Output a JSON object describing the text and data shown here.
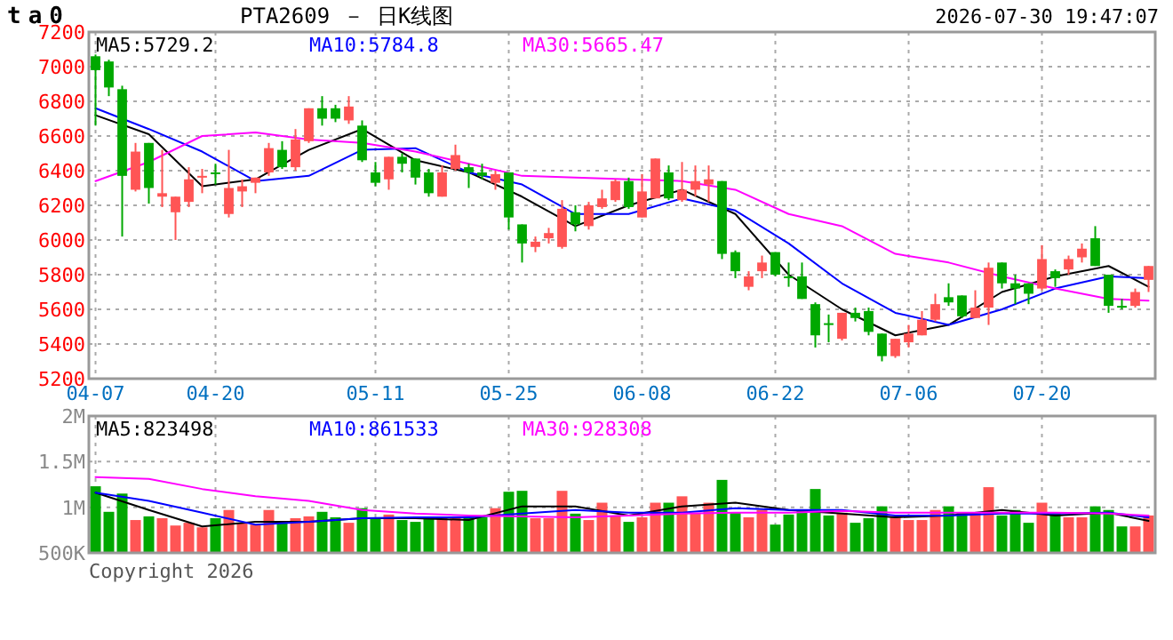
{
  "chart_data": [
    {
      "type": "candlestick",
      "title": "PTA2609 － 日K线图",
      "annotations": [
        "ta0",
        "2026-07-30 19:47:07"
      ],
      "categories": [
        "04-07",
        null,
        null,
        null,
        null,
        null,
        null,
        null,
        null,
        "04-20",
        null,
        null,
        null,
        null,
        null,
        null,
        null,
        null,
        null,
        null,
        null,
        "05-11",
        null,
        null,
        null,
        null,
        null,
        null,
        null,
        null,
        null,
        "05-25",
        null,
        null,
        null,
        null,
        null,
        null,
        null,
        null,
        null,
        "06-08",
        null,
        null,
        null,
        null,
        null,
        null,
        null,
        null,
        null,
        "06-22",
        null,
        null,
        null,
        null,
        null,
        null,
        null,
        null,
        null,
        "07-06",
        null,
        null,
        null,
        null,
        null,
        null,
        null,
        null,
        null,
        "07-20",
        null,
        null,
        null,
        null,
        null,
        null,
        null,
        null
      ],
      "ohlc": [
        [
          7060,
          7070,
          6660,
          6980
        ],
        [
          7030,
          7040,
          6830,
          6880
        ],
        [
          6870,
          6890,
          6020,
          6370
        ],
        [
          6290,
          6560,
          6280,
          6510
        ],
        [
          6560,
          6560,
          6210,
          6300
        ],
        [
          6250,
          6520,
          6190,
          6270
        ],
        [
          6160,
          6250,
          6000,
          6250
        ],
        [
          6220,
          6420,
          6190,
          6350
        ],
        [
          6360,
          6410,
          6270,
          6370
        ],
        [
          6390,
          6440,
          6320,
          6380
        ],
        [
          6150,
          6520,
          6130,
          6300
        ],
        [
          6280,
          6350,
          6190,
          6310
        ],
        [
          6330,
          6360,
          6270,
          6360
        ],
        [
          6390,
          6560,
          6370,
          6530
        ],
        [
          6520,
          6570,
          6410,
          6420
        ],
        [
          6420,
          6640,
          6400,
          6580
        ],
        [
          6570,
          6760,
          6560,
          6760
        ],
        [
          6760,
          6830,
          6660,
          6700
        ],
        [
          6760,
          6780,
          6680,
          6700
        ],
        [
          6690,
          6830,
          6670,
          6770
        ],
        [
          6660,
          6690,
          6450,
          6460
        ],
        [
          6390,
          6450,
          6310,
          6330
        ],
        [
          6350,
          6480,
          6290,
          6480
        ],
        [
          6480,
          6500,
          6390,
          6440
        ],
        [
          6470,
          6470,
          6320,
          6360
        ],
        [
          6390,
          6410,
          6250,
          6270
        ],
        [
          6250,
          6430,
          6250,
          6390
        ],
        [
          6410,
          6550,
          6400,
          6490
        ],
        [
          6420,
          6440,
          6300,
          6390
        ],
        [
          6390,
          6440,
          6350,
          6370
        ],
        [
          6330,
          6400,
          6290,
          6380
        ],
        [
          6390,
          6390,
          6060,
          6130
        ],
        [
          6090,
          6090,
          5870,
          5980
        ],
        [
          5960,
          6020,
          5930,
          5990
        ],
        [
          6010,
          6070,
          5980,
          6040
        ],
        [
          5960,
          6230,
          5950,
          6180
        ],
        [
          6160,
          6200,
          6050,
          6090
        ],
        [
          6080,
          6220,
          6060,
          6200
        ],
        [
          6190,
          6290,
          6180,
          6240
        ],
        [
          6230,
          6350,
          6220,
          6340
        ],
        [
          6340,
          6360,
          6180,
          6190
        ],
        [
          6130,
          6380,
          6130,
          6280
        ],
        [
          6240,
          6470,
          6240,
          6470
        ],
        [
          6390,
          6430,
          6230,
          6240
        ],
        [
          6230,
          6450,
          6220,
          6290
        ],
        [
          6290,
          6430,
          6250,
          6340
        ],
        [
          6320,
          6430,
          6220,
          6350
        ],
        [
          6340,
          6340,
          5890,
          5920
        ],
        [
          5930,
          5940,
          5780,
          5820
        ],
        [
          5730,
          5820,
          5710,
          5790
        ],
        [
          5820,
          5910,
          5780,
          5870
        ],
        [
          5930,
          5930,
          5790,
          5800
        ],
        [
          5790,
          5870,
          5730,
          5780
        ],
        [
          5790,
          5870,
          5660,
          5660
        ],
        [
          5630,
          5640,
          5380,
          5450
        ],
        [
          5520,
          5570,
          5410,
          5510
        ],
        [
          5430,
          5580,
          5420,
          5580
        ],
        [
          5580,
          5610,
          5530,
          5550
        ],
        [
          5590,
          5610,
          5450,
          5470
        ],
        [
          5460,
          5460,
          5300,
          5330
        ],
        [
          5330,
          5430,
          5320,
          5430
        ],
        [
          5410,
          5510,
          5380,
          5460
        ],
        [
          5450,
          5590,
          5450,
          5540
        ],
        [
          5540,
          5690,
          5530,
          5630
        ],
        [
          5670,
          5750,
          5620,
          5640
        ],
        [
          5680,
          5680,
          5550,
          5560
        ],
        [
          5550,
          5710,
          5550,
          5610
        ],
        [
          5610,
          5870,
          5510,
          5840
        ],
        [
          5870,
          5870,
          5720,
          5750
        ],
        [
          5750,
          5800,
          5630,
          5720
        ],
        [
          5750,
          5750,
          5630,
          5690
        ],
        [
          5720,
          5970,
          5710,
          5890
        ],
        [
          5820,
          5830,
          5730,
          5780
        ],
        [
          5830,
          5910,
          5800,
          5890
        ],
        [
          5900,
          5980,
          5870,
          5950
        ],
        [
          6010,
          6080,
          5850,
          5850
        ],
        [
          5800,
          5800,
          5580,
          5620
        ],
        [
          5620,
          5660,
          5600,
          5610
        ],
        [
          5620,
          5720,
          5610,
          5700
        ],
        [
          5770,
          5850,
          5700,
          5850
        ]
      ],
      "colors": [
        "#00a800",
        "#00a800",
        "#00a800",
        "#ff5555",
        "#00a800",
        "#ff5555",
        "#ff5555",
        "#ff5555",
        "#ff5555",
        "#00a800",
        "#ff5555",
        "#ff5555",
        "#ff5555",
        "#ff5555",
        "#00a800",
        "#ff5555",
        "#ff5555",
        "#00a800",
        "#00a800",
        "#ff5555",
        "#00a800",
        "#00a800",
        "#ff5555",
        "#00a800",
        "#00a800",
        "#00a800",
        "#ff5555",
        "#ff5555",
        "#00a800",
        "#00a800",
        "#ff5555",
        "#00a800",
        "#00a800",
        "#ff5555",
        "#ff5555",
        "#ff5555",
        "#00a800",
        "#ff5555",
        "#ff5555",
        "#ff5555",
        "#00a800",
        "#ff5555",
        "#ff5555",
        "#00a800",
        "#ff5555",
        "#ff5555",
        "#ff5555",
        "#00a800",
        "#00a800",
        "#ff5555",
        "#ff5555",
        "#00a800",
        "#00a800",
        "#00a800",
        "#00a800",
        "#00a800",
        "#ff5555",
        "#00a800",
        "#00a800",
        "#00a800",
        "#ff5555",
        "#ff5555",
        "#ff5555",
        "#ff5555",
        "#00a800",
        "#00a800",
        "#ff5555",
        "#ff5555",
        "#00a800",
        "#00a800",
        "#00a800",
        "#ff5555",
        "#00a800",
        "#ff5555",
        "#ff5555",
        "#00a800",
        "#00a800",
        "#00a800",
        "#ff5555",
        "#ff5555"
      ],
      "series": [
        {
          "name": "MA5:5729.2",
          "color": "#000000",
          "type": "line",
          "values": [
            6720,
            null,
            null,
            null,
            6610,
            null,
            null,
            null,
            6310,
            null,
            null,
            null,
            6350,
            null,
            null,
            null,
            6520,
            null,
            null,
            null,
            6640,
            null,
            null,
            null,
            6460,
            null,
            null,
            null,
            6390,
            null,
            null,
            null,
            6250,
            null,
            null,
            null,
            6080,
            null,
            null,
            null,
            6200,
            null,
            null,
            null,
            6290,
            null,
            null,
            null,
            6150,
            null,
            null,
            null,
            5800,
            null,
            null,
            null,
            5600,
            null,
            null,
            null,
            5450,
            null,
            null,
            null,
            5510,
            null,
            null,
            null,
            5700,
            null,
            null,
            null,
            5790,
            null,
            null,
            null,
            5850,
            null,
            null,
            5730
          ]
        },
        {
          "name": "MA10:5784.8",
          "color": "#0000ff",
          "type": "line",
          "values": [
            6760,
            null,
            null,
            null,
            6640,
            null,
            null,
            null,
            6510,
            null,
            null,
            null,
            6340,
            null,
            null,
            null,
            6370,
            null,
            null,
            null,
            6520,
            null,
            null,
            null,
            6530,
            null,
            null,
            null,
            6390,
            null,
            null,
            null,
            6320,
            null,
            null,
            null,
            6150,
            null,
            null,
            null,
            6150,
            null,
            null,
            null,
            6240,
            null,
            null,
            null,
            6170,
            null,
            null,
            null,
            5980,
            null,
            null,
            null,
            5750,
            null,
            null,
            null,
            5580,
            null,
            null,
            null,
            5510,
            null,
            null,
            null,
            5600,
            null,
            null,
            null,
            5720,
            null,
            null,
            null,
            5790,
            null,
            null,
            5780
          ]
        },
        {
          "name": "MA30:5665.47",
          "color": "#ff00ff",
          "type": "line",
          "values": [
            6340,
            null,
            null,
            null,
            6450,
            null,
            null,
            null,
            6600,
            null,
            null,
            null,
            6620,
            null,
            null,
            null,
            6580,
            null,
            null,
            null,
            6560,
            null,
            null,
            null,
            6510,
            null,
            null,
            null,
            6440,
            null,
            null,
            null,
            6370,
            null,
            null,
            null,
            6360,
            null,
            null,
            null,
            6350,
            null,
            null,
            null,
            6340,
            null,
            null,
            null,
            6290,
            null,
            null,
            null,
            6150,
            null,
            null,
            null,
            6080,
            null,
            null,
            null,
            5920,
            null,
            null,
            null,
            5870,
            null,
            null,
            null,
            5790,
            null,
            null,
            null,
            5720,
            null,
            null,
            null,
            5660,
            null,
            null,
            5650
          ]
        }
      ],
      "ylim": [
        5200,
        7200
      ],
      "yticks": [
        5200,
        5400,
        5600,
        5800,
        6000,
        6200,
        6400,
        6600,
        6800,
        7000,
        7200
      ],
      "grid": true,
      "legend": "top left"
    },
    {
      "type": "bar",
      "annotations": [
        "Copyright 2026"
      ],
      "categories": [
        null,
        null,
        null,
        null,
        null,
        null,
        null,
        null,
        null,
        null,
        null,
        null,
        null,
        null,
        null,
        null,
        null,
        null,
        null,
        null,
        null,
        null,
        null,
        null,
        null,
        null,
        null,
        null,
        null,
        null,
        null,
        null,
        null,
        null,
        null,
        null,
        null,
        null,
        null,
        null,
        null,
        null,
        null,
        null,
        null,
        null,
        null,
        null,
        null,
        null,
        null,
        null,
        null,
        null,
        null,
        null,
        null,
        null,
        null,
        null,
        null,
        null,
        null,
        null,
        null,
        null,
        null,
        null,
        null,
        null,
        null,
        null,
        null,
        null,
        null,
        null,
        null,
        null,
        null,
        null
      ],
      "values": [
        1230000,
        950000,
        1150000,
        860000,
        900000,
        880000,
        800000,
        830000,
        780000,
        880000,
        970000,
        830000,
        810000,
        970000,
        830000,
        880000,
        900000,
        950000,
        890000,
        830000,
        990000,
        880000,
        920000,
        860000,
        840000,
        890000,
        890000,
        890000,
        890000,
        890000,
        990000,
        1170000,
        1180000,
        880000,
        880000,
        1180000,
        930000,
        860000,
        1050000,
        910000,
        840000,
        890000,
        1050000,
        1050000,
        1120000,
        940000,
        1050000,
        1300000,
        940000,
        890000,
        970000,
        810000,
        920000,
        970000,
        1200000,
        910000,
        940000,
        830000,
        880000,
        1010000,
        890000,
        860000,
        860000,
        970000,
        1010000,
        940000,
        940000,
        1220000,
        910000,
        970000,
        830000,
        1050000,
        940000,
        890000,
        890000,
        1010000,
        970000,
        790000,
        790000,
        910000
      ],
      "colors": [
        "#00a800",
        "#00a800",
        "#00a800",
        "#ff5555",
        "#00a800",
        "#ff5555",
        "#ff5555",
        "#ff5555",
        "#ff5555",
        "#00a800",
        "#ff5555",
        "#ff5555",
        "#ff5555",
        "#ff5555",
        "#00a800",
        "#ff5555",
        "#ff5555",
        "#00a800",
        "#00a800",
        "#ff5555",
        "#00a800",
        "#00a800",
        "#ff5555",
        "#00a800",
        "#00a800",
        "#00a800",
        "#ff5555",
        "#ff5555",
        "#00a800",
        "#00a800",
        "#ff5555",
        "#00a800",
        "#00a800",
        "#ff5555",
        "#ff5555",
        "#ff5555",
        "#00a800",
        "#ff5555",
        "#ff5555",
        "#ff5555",
        "#00a800",
        "#ff5555",
        "#ff5555",
        "#00a800",
        "#ff5555",
        "#ff5555",
        "#ff5555",
        "#00a800",
        "#00a800",
        "#ff5555",
        "#ff5555",
        "#00a800",
        "#00a800",
        "#00a800",
        "#00a800",
        "#00a800",
        "#ff5555",
        "#00a800",
        "#00a800",
        "#00a800",
        "#ff5555",
        "#ff5555",
        "#ff5555",
        "#ff5555",
        "#00a800",
        "#00a800",
        "#ff5555",
        "#ff5555",
        "#00a800",
        "#00a800",
        "#00a800",
        "#ff5555",
        "#00a800",
        "#ff5555",
        "#ff5555",
        "#00a800",
        "#00a800",
        "#00a800",
        "#ff5555",
        "#ff5555"
      ],
      "series": [
        {
          "name": "MA5:823498",
          "color": "#000000",
          "type": "line",
          "values": [
            1160000,
            null,
            null,
            null,
            970000,
            null,
            null,
            null,
            790000,
            null,
            null,
            null,
            840000,
            null,
            null,
            null,
            840000,
            null,
            null,
            null,
            880000,
            null,
            null,
            null,
            880000,
            null,
            null,
            null,
            860000,
            null,
            null,
            null,
            1010000,
            null,
            null,
            null,
            1010000,
            null,
            null,
            null,
            910000,
            null,
            null,
            null,
            1010000,
            null,
            null,
            null,
            1050000,
            null,
            null,
            null,
            970000,
            null,
            null,
            null,
            930000,
            null,
            null,
            null,
            890000,
            null,
            null,
            null,
            910000,
            null,
            null,
            null,
            970000,
            null,
            null,
            null,
            910000,
            null,
            null,
            null,
            940000,
            null,
            null,
            850000
          ]
        },
        {
          "name": "MA10:861533",
          "color": "#0000ff",
          "type": "line",
          "values": [
            1160000,
            null,
            null,
            null,
            1070000,
            null,
            null,
            null,
            940000,
            null,
            null,
            null,
            810000,
            null,
            null,
            null,
            840000,
            null,
            null,
            null,
            880000,
            null,
            null,
            null,
            890000,
            null,
            null,
            null,
            890000,
            null,
            null,
            null,
            930000,
            null,
            null,
            null,
            970000,
            null,
            null,
            null,
            940000,
            null,
            null,
            null,
            940000,
            null,
            null,
            null,
            990000,
            null,
            null,
            null,
            970000,
            null,
            null,
            null,
            970000,
            null,
            null,
            null,
            910000,
            null,
            null,
            null,
            910000,
            null,
            null,
            null,
            930000,
            null,
            null,
            null,
            930000,
            null,
            null,
            null,
            940000,
            null,
            null,
            890000
          ]
        },
        {
          "name": "MA30:928308",
          "color": "#ff00ff",
          "type": "line",
          "values": [
            1330000,
            null,
            null,
            null,
            1310000,
            null,
            null,
            null,
            1200000,
            null,
            null,
            null,
            1120000,
            null,
            null,
            null,
            1070000,
            null,
            null,
            null,
            970000,
            null,
            null,
            null,
            930000,
            null,
            null,
            null,
            910000,
            null,
            null,
            null,
            900000,
            null,
            null,
            null,
            890000,
            null,
            null,
            null,
            910000,
            null,
            null,
            null,
            930000,
            null,
            null,
            null,
            940000,
            null,
            null,
            null,
            940000,
            null,
            null,
            null,
            960000,
            null,
            null,
            null,
            940000,
            null,
            null,
            null,
            940000,
            null,
            null,
            null,
            940000,
            null,
            null,
            null,
            940000,
            null,
            null,
            null,
            930000,
            null,
            null,
            910000
          ]
        }
      ],
      "ylim": [
        500000,
        2000000
      ],
      "yticks": [
        {
          "value": 500000,
          "label": "500K"
        },
        {
          "value": 1000000,
          "label": "1M"
        },
        {
          "value": 1500000,
          "label": "1.5M"
        },
        {
          "value": 2000000,
          "label": "2M"
        }
      ],
      "grid": true,
      "legend": "top left",
      "tick_labels": "y"
    }
  ]
}
